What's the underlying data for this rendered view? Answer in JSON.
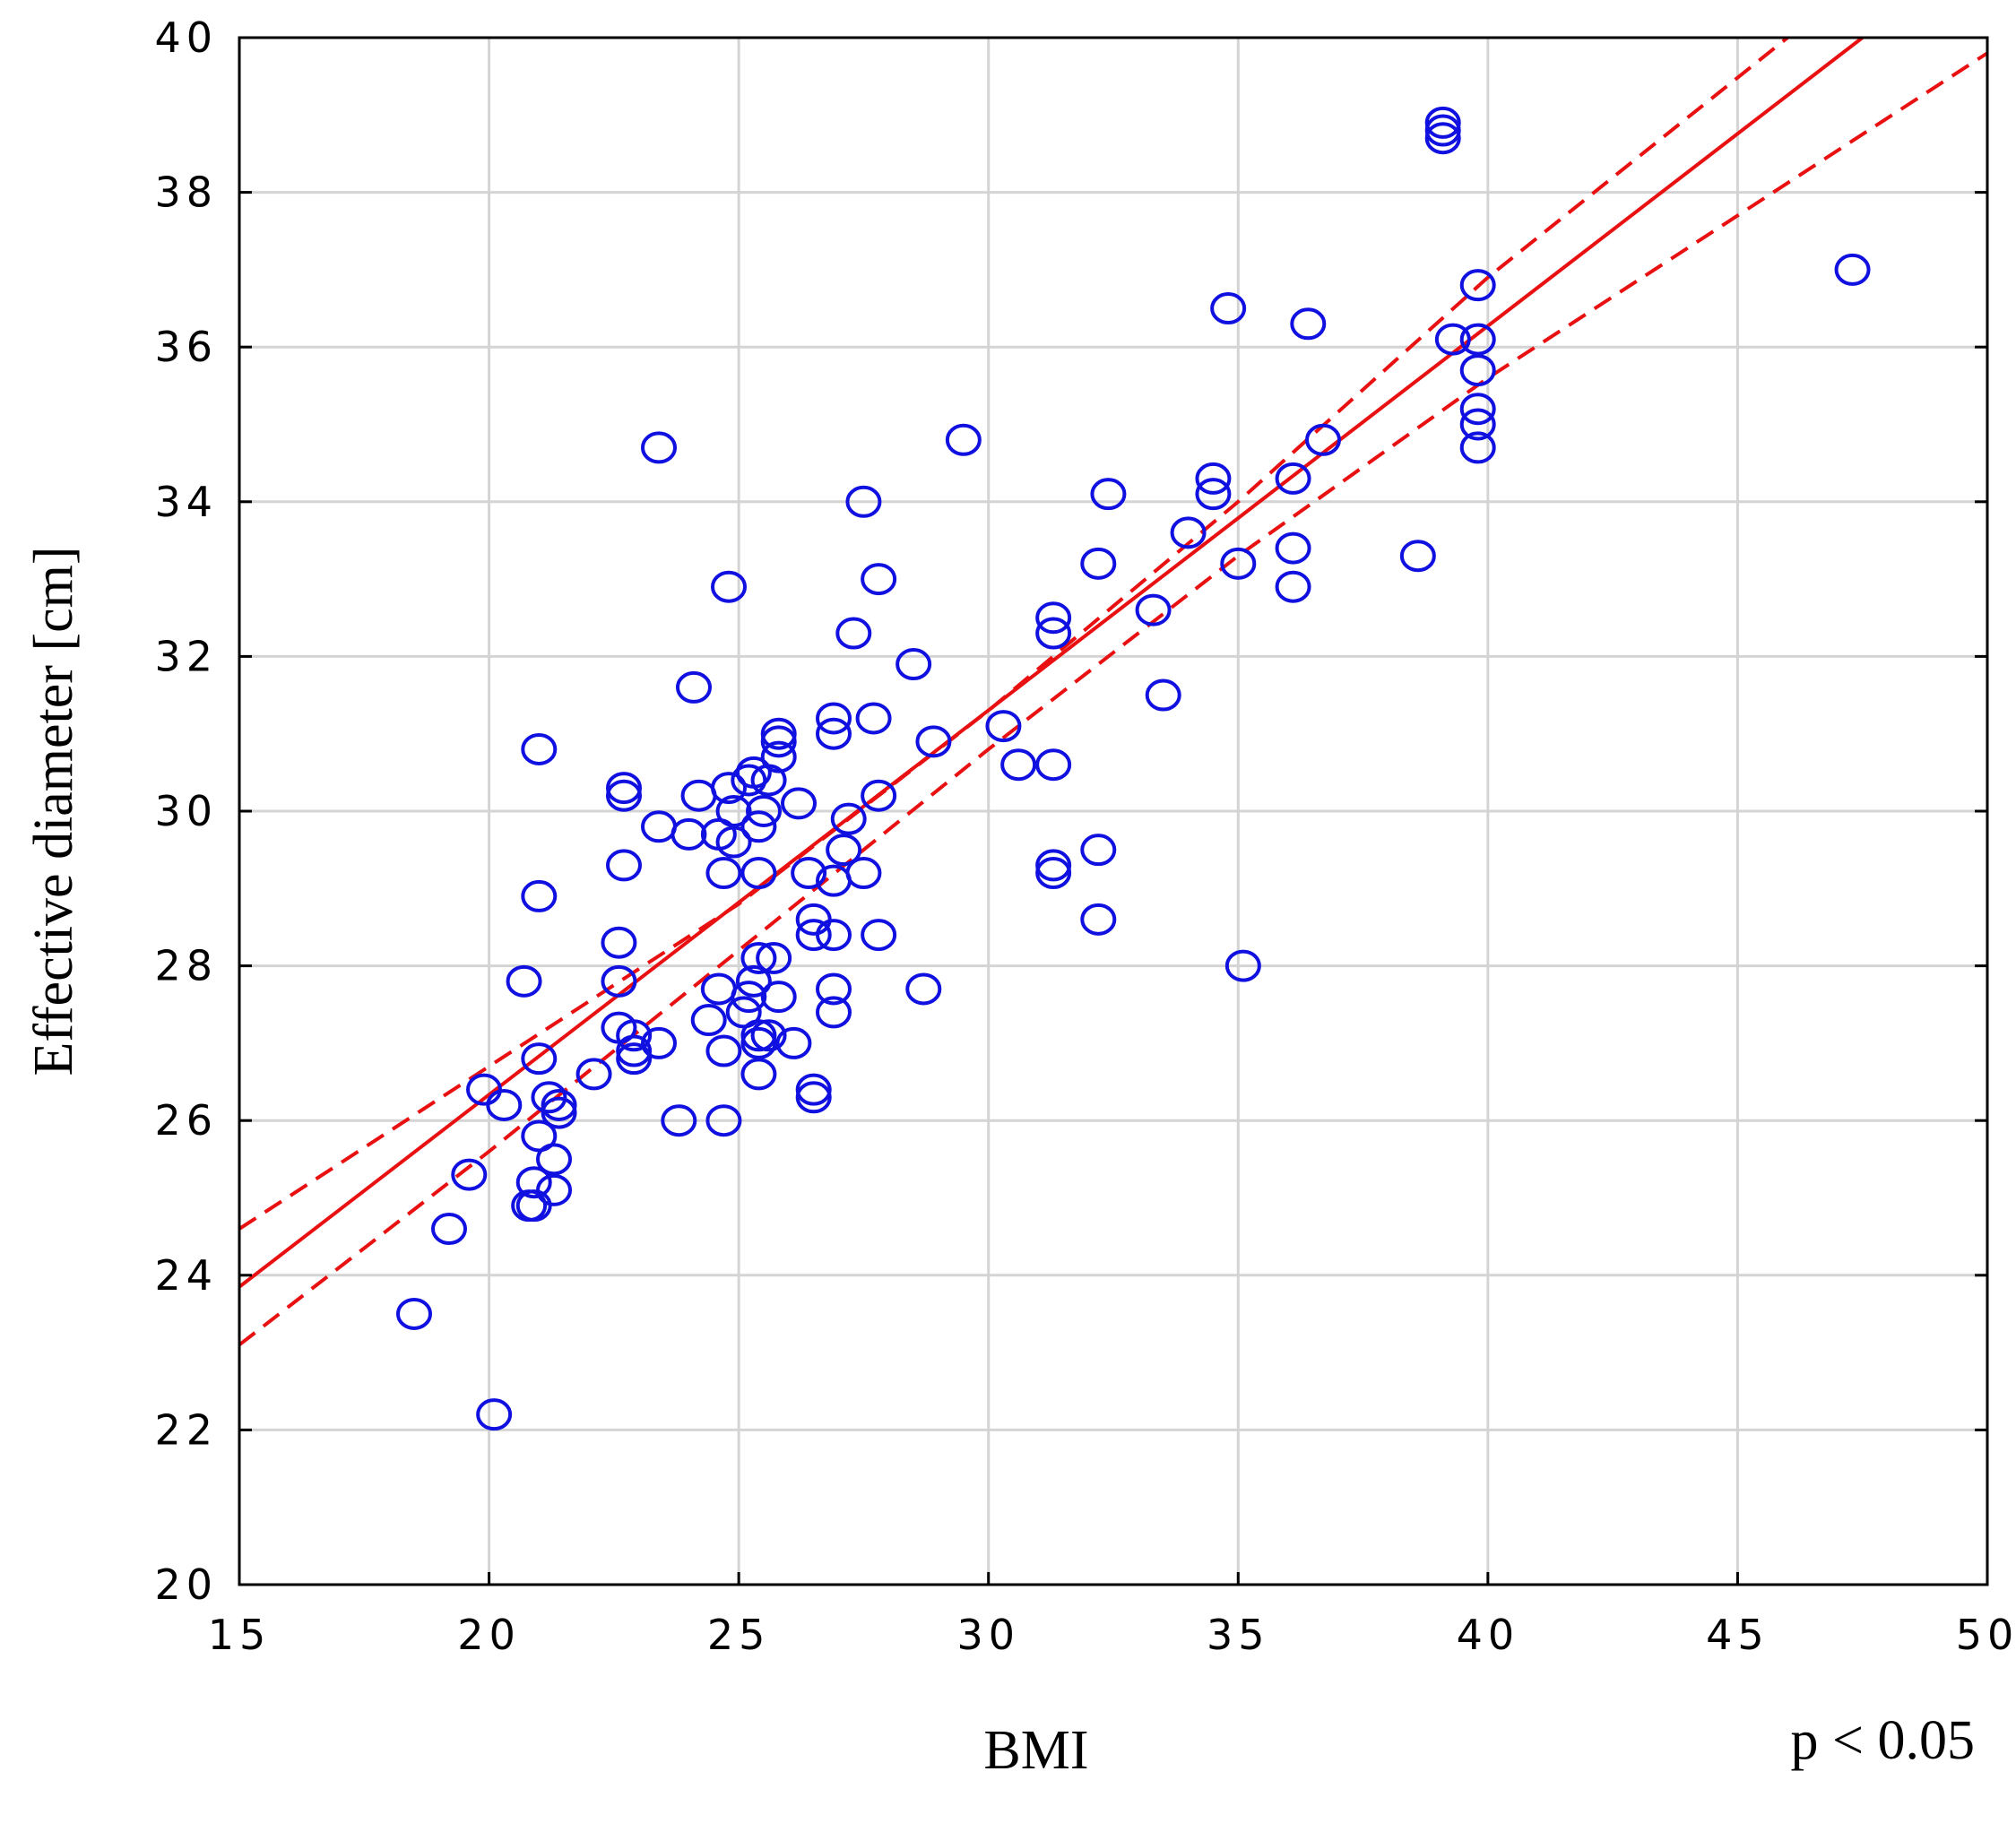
{
  "chart_data": {
    "type": "scatter",
    "title": "",
    "xlabel": "BMI",
    "ylabel": "Effective diameter [cm]",
    "annotation": "p < 0.05",
    "xlim": [
      15,
      50
    ],
    "ylim": [
      20,
      40
    ],
    "xticks": [
      "15",
      "20",
      "25",
      "30",
      "35",
      "40",
      "45",
      "50"
    ],
    "yticks": [
      "20",
      "22",
      "24",
      "26",
      "28",
      "30",
      "32",
      "34",
      "36",
      "38",
      "40"
    ],
    "grid": true,
    "legend": "none",
    "colors": {
      "points": "#1010e0",
      "fit": "#e81010",
      "grid": "#d4d4d4",
      "frame": "#000000"
    },
    "points": [
      [
        18.5,
        23.5
      ],
      [
        19.2,
        24.6
      ],
      [
        19.6,
        25.3
      ],
      [
        19.9,
        26.4
      ],
      [
        20.1,
        22.2
      ],
      [
        20.3,
        26.2
      ],
      [
        20.7,
        27.8
      ],
      [
        20.8,
        24.9
      ],
      [
        20.9,
        25.2
      ],
      [
        20.9,
        24.9
      ],
      [
        21.0,
        25.8
      ],
      [
        21.0,
        26.8
      ],
      [
        21.0,
        28.9
      ],
      [
        21.0,
        30.8
      ],
      [
        21.2,
        26.3
      ],
      [
        21.3,
        25.5
      ],
      [
        21.3,
        25.1
      ],
      [
        21.4,
        26.1
      ],
      [
        21.4,
        26.2
      ],
      [
        22.1,
        26.6
      ],
      [
        22.6,
        27.2
      ],
      [
        22.6,
        27.8
      ],
      [
        22.6,
        28.3
      ],
      [
        22.7,
        29.3
      ],
      [
        22.7,
        30.2
      ],
      [
        22.7,
        30.3
      ],
      [
        22.9,
        27.1
      ],
      [
        22.9,
        26.9
      ],
      [
        22.9,
        26.8
      ],
      [
        23.4,
        27.0
      ],
      [
        23.4,
        29.8
      ],
      [
        23.4,
        34.7
      ],
      [
        23.8,
        26.0
      ],
      [
        24.0,
        29.7
      ],
      [
        24.1,
        31.6
      ],
      [
        24.2,
        30.2
      ],
      [
        24.4,
        27.3
      ],
      [
        24.6,
        27.7
      ],
      [
        24.6,
        29.7
      ],
      [
        24.7,
        26.9
      ],
      [
        24.7,
        26.0
      ],
      [
        24.7,
        29.2
      ],
      [
        24.8,
        30.3
      ],
      [
        24.8,
        32.9
      ],
      [
        24.9,
        29.6
      ],
      [
        24.9,
        30.0
      ],
      [
        25.1,
        27.4
      ],
      [
        25.2,
        27.6
      ],
      [
        25.2,
        30.4
      ],
      [
        25.3,
        27.8
      ],
      [
        25.3,
        30.5
      ],
      [
        25.4,
        26.6
      ],
      [
        25.4,
        27.0
      ],
      [
        25.4,
        27.1
      ],
      [
        25.4,
        28.1
      ],
      [
        25.4,
        29.2
      ],
      [
        25.4,
        29.8
      ],
      [
        25.5,
        30.0
      ],
      [
        25.6,
        27.1
      ],
      [
        25.6,
        30.4
      ],
      [
        25.7,
        28.1
      ],
      [
        25.8,
        27.6
      ],
      [
        25.8,
        30.7
      ],
      [
        25.8,
        30.9
      ],
      [
        25.8,
        31.0
      ],
      [
        26.1,
        27.0
      ],
      [
        26.2,
        30.1
      ],
      [
        26.4,
        29.2
      ],
      [
        26.5,
        28.6
      ],
      [
        26.5,
        28.4
      ],
      [
        26.5,
        26.4
      ],
      [
        26.5,
        26.3
      ],
      [
        26.9,
        27.7
      ],
      [
        26.9,
        27.4
      ],
      [
        26.9,
        28.4
      ],
      [
        26.9,
        29.1
      ],
      [
        26.9,
        31.0
      ],
      [
        26.9,
        31.2
      ],
      [
        27.1,
        29.5
      ],
      [
        27.2,
        29.9
      ],
      [
        27.3,
        32.3
      ],
      [
        27.5,
        29.2
      ],
      [
        27.5,
        34.0
      ],
      [
        27.7,
        31.2
      ],
      [
        27.8,
        28.4
      ],
      [
        27.8,
        30.2
      ],
      [
        27.8,
        33.0
      ],
      [
        28.5,
        31.9
      ],
      [
        28.7,
        27.7
      ],
      [
        28.9,
        30.9
      ],
      [
        29.5,
        34.8
      ],
      [
        30.3,
        31.1
      ],
      [
        30.6,
        30.6
      ],
      [
        31.3,
        30.6
      ],
      [
        31.3,
        29.3
      ],
      [
        31.3,
        29.2
      ],
      [
        31.3,
        32.3
      ],
      [
        31.3,
        32.5
      ],
      [
        32.2,
        33.2
      ],
      [
        32.2,
        29.5
      ],
      [
        32.2,
        28.6
      ],
      [
        32.4,
        34.1
      ],
      [
        33.3,
        32.6
      ],
      [
        33.5,
        31.5
      ],
      [
        34.0,
        33.6
      ],
      [
        34.5,
        34.1
      ],
      [
        34.5,
        34.3
      ],
      [
        34.8,
        36.5
      ],
      [
        35.0,
        33.2
      ],
      [
        35.1,
        28.0
      ],
      [
        36.1,
        34.3
      ],
      [
        36.1,
        33.4
      ],
      [
        36.1,
        32.9
      ],
      [
        36.4,
        36.3
      ],
      [
        36.7,
        34.8
      ],
      [
        38.6,
        33.3
      ],
      [
        39.1,
        38.7
      ],
      [
        39.1,
        38.8
      ],
      [
        39.1,
        38.9
      ],
      [
        39.3,
        36.1
      ],
      [
        39.8,
        36.8
      ],
      [
        39.8,
        36.1
      ],
      [
        39.8,
        35.7
      ],
      [
        39.8,
        35.2
      ],
      [
        39.8,
        35.0
      ],
      [
        39.8,
        34.7
      ],
      [
        47.3,
        37.0
      ]
    ],
    "regression": {
      "x": [
        15,
        47.5
      ],
      "y": [
        23.85,
        40.0
      ]
    },
    "confidence_band": {
      "upper": {
        "x": [
          15,
          20,
          25,
          30,
          35,
          40,
          46
        ],
        "y": [
          24.6,
          26.7,
          28.8,
          31.3,
          34.0,
          36.9,
          40.0
        ]
      },
      "lower": {
        "x": [
          15,
          20,
          25,
          30,
          35,
          40,
          50
        ],
        "y": [
          23.1,
          25.6,
          28.2,
          30.8,
          33.3,
          35.6,
          39.8
        ]
      }
    }
  }
}
